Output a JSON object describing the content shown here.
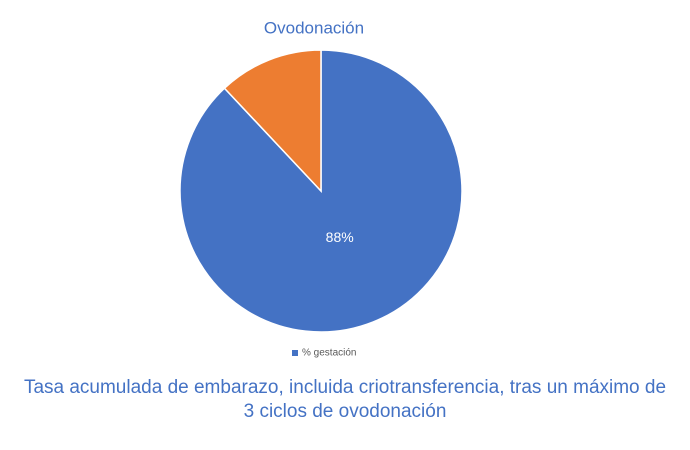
{
  "chart_data": {
    "type": "pie",
    "title": "Ovodonación",
    "categories": [
      "% gestación",
      null
    ],
    "values": [
      88,
      12
    ],
    "value_labels": [
      "88%",
      null
    ],
    "colors": [
      "#4472c4",
      "#ed7d31"
    ],
    "caption": "Tasa acumulada de embarazo, incluida criotransferencia, tras un máximo de 3 ciclos de ovodonación"
  }
}
